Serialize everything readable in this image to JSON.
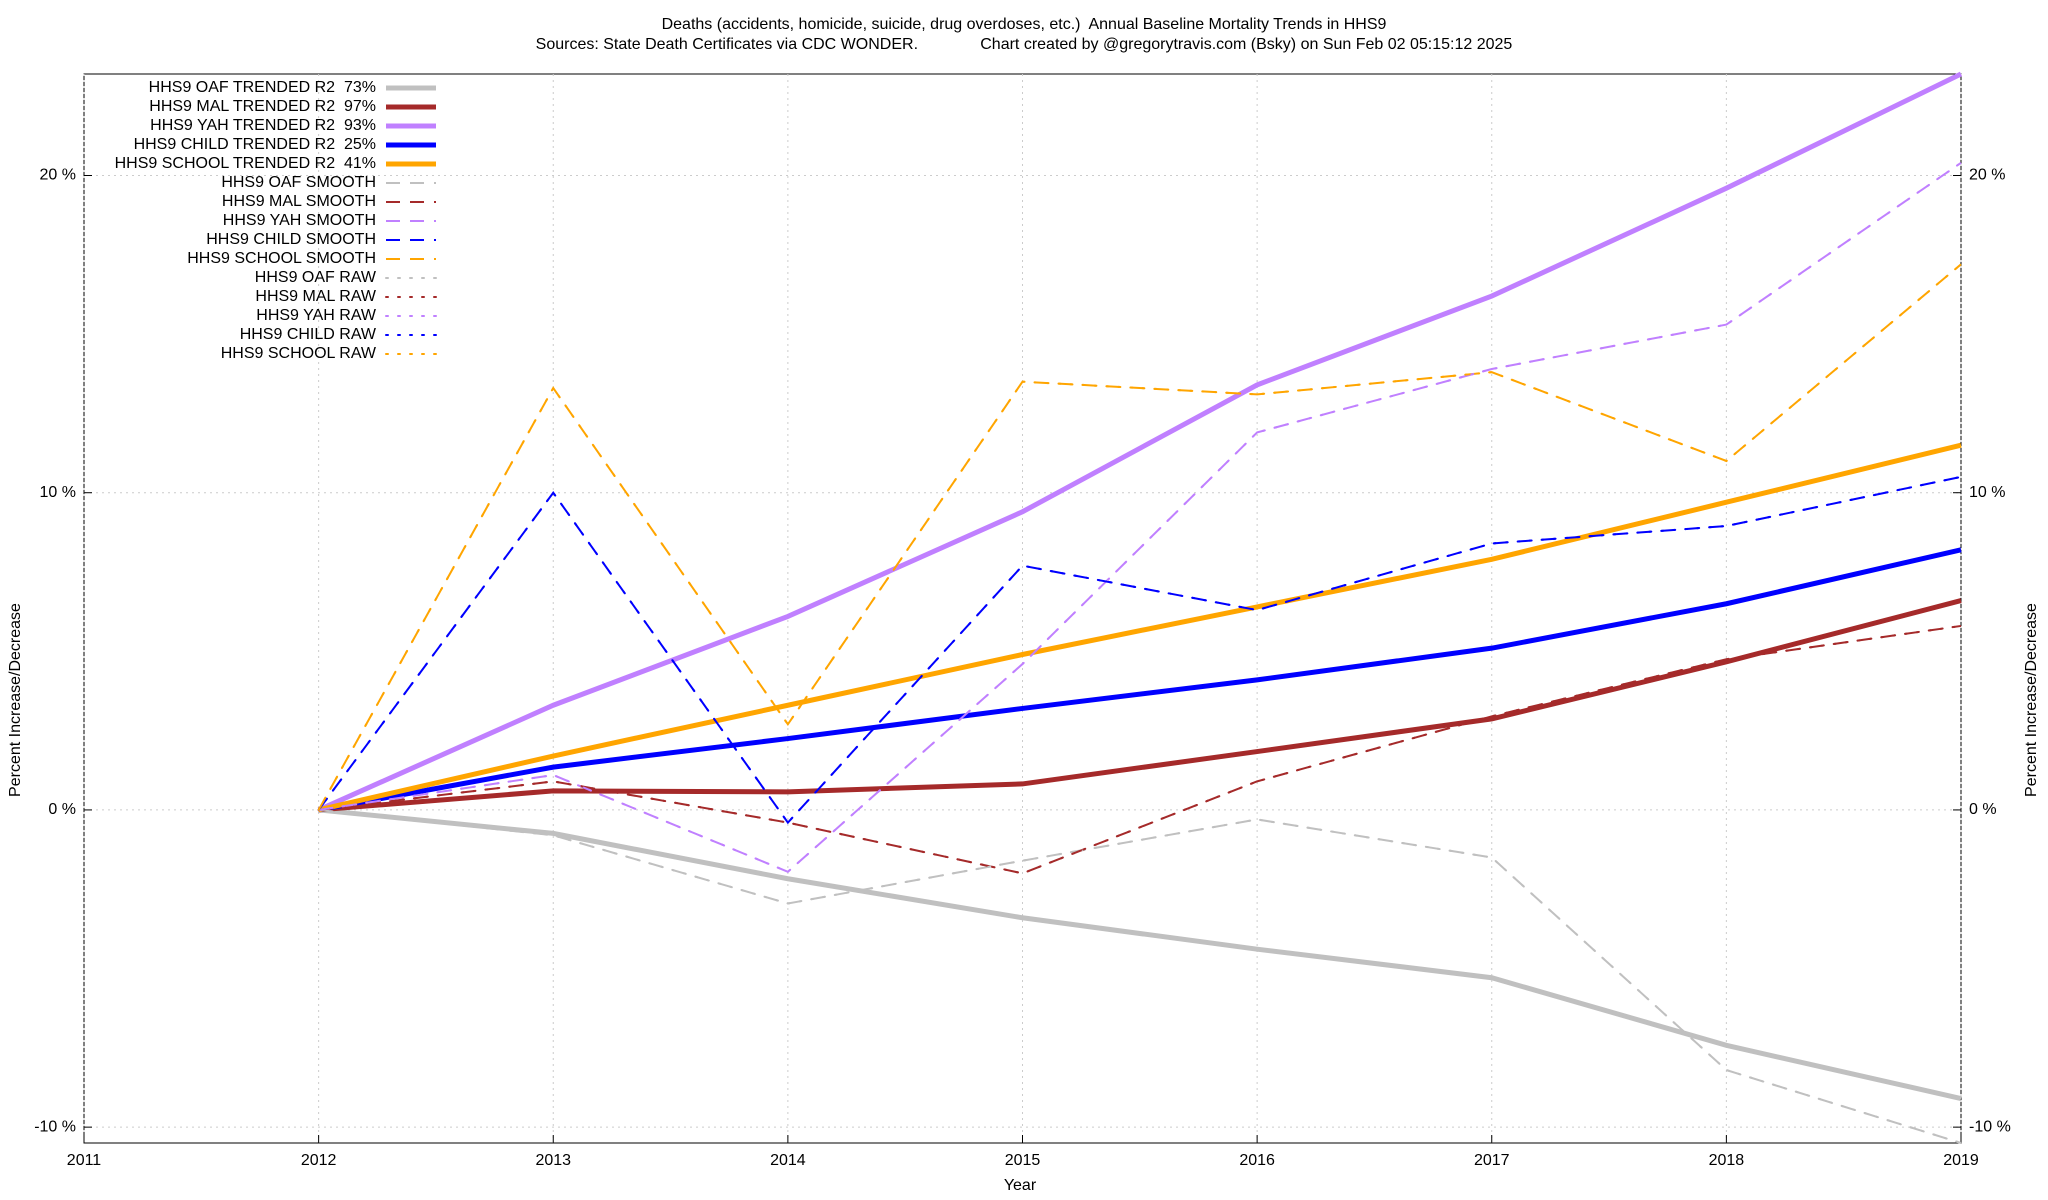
{
  "chart_data": {
    "type": "line",
    "title": "Deaths (accidents, homicide, suicide, drug overdoses, etc.)  Annual Baseline Mortality Trends in HHS9",
    "subtitle": "Sources: State Death Certificates via CDC WONDER.              Chart created by @gregorytravis.com (Bsky) on Sun Feb 02 05:15:12 2025",
    "x_label": "Year",
    "y_label": "Percent Increase/Decrease",
    "x": [
      2012,
      2013,
      2014,
      2015,
      2016,
      2017,
      2018,
      2019
    ],
    "xlim": [
      2011,
      2019
    ],
    "xticks": [
      2011,
      2012,
      2013,
      2014,
      2015,
      2016,
      2017,
      2018,
      2019
    ],
    "ylim": [
      -10.5,
      23.2
    ],
    "yticks": [
      {
        "value": -10,
        "label": "-10 %"
      },
      {
        "value": 0,
        "label": "0 %"
      },
      {
        "value": 10,
        "label": "10 %"
      },
      {
        "value": 20,
        "label": "20 %"
      }
    ],
    "grid": true,
    "legend": "top-left",
    "series": [
      {
        "name": "HHS9 OAF TRENDED R2  73%",
        "color": "#c0c0c0",
        "style": "solid",
        "values": [
          0,
          -0.74,
          -2.17,
          -3.4,
          -4.39,
          -5.29,
          -7.42,
          -9.1
        ]
      },
      {
        "name": "HHS9 MAL TRENDED R2  97%",
        "color": "#a52a2a",
        "style": "solid",
        "values": [
          0,
          0.6,
          0.57,
          0.82,
          1.84,
          2.87,
          4.67,
          6.6
        ]
      },
      {
        "name": "HHS9 YAH TRENDED R2  93%",
        "color": "#c080ff",
        "style": "solid",
        "values": [
          0,
          3.3,
          6.1,
          9.4,
          13.4,
          16.2,
          19.6,
          23.2
        ]
      },
      {
        "name": "HHS9 CHILD TRENDED R2  25%",
        "color": "#0000ff",
        "style": "solid",
        "values": [
          0,
          1.35,
          2.25,
          3.2,
          4.1,
          5.1,
          6.5,
          8.2
        ]
      },
      {
        "name": "HHS9 SCHOOL TRENDED R2  41%",
        "color": "#ffa500",
        "style": "solid",
        "values": [
          0,
          1.7,
          3.3,
          4.9,
          6.4,
          7.9,
          9.7,
          11.5
        ]
      },
      {
        "name": "HHS9 OAF SMOOTH",
        "color": "#c0c0c0",
        "style": "dashed",
        "values": [
          0,
          -0.8,
          -2.95,
          -1.6,
          -0.3,
          -1.5,
          -8.2,
          -10.5
        ]
      },
      {
        "name": "HHS9 MAL SMOOTH",
        "color": "#a52a2a",
        "style": "dashed",
        "values": [
          0,
          0.9,
          -0.4,
          -2.0,
          0.9,
          2.95,
          4.75,
          5.8
        ]
      },
      {
        "name": "HHS9 YAH SMOOTH",
        "color": "#c080ff",
        "style": "dashed",
        "values": [
          0,
          1.1,
          -1.95,
          4.6,
          11.9,
          13.9,
          15.3,
          20.4
        ]
      },
      {
        "name": "HHS9 CHILD SMOOTH",
        "color": "#0000ff",
        "style": "dashed",
        "values": [
          0,
          10,
          -0.4,
          7.7,
          6.3,
          8.4,
          8.95,
          10.5
        ]
      },
      {
        "name": "HHS9 SCHOOL SMOOTH",
        "color": "#ffa500",
        "style": "dashed",
        "values": [
          0,
          13.3,
          2.7,
          13.5,
          13.1,
          13.8,
          11.0,
          17.2
        ]
      },
      {
        "name": "HHS9 OAF RAW",
        "color": "#c0c0c0",
        "style": "dotted",
        "values": [
          0,
          -0.8,
          -2.95,
          -1.6,
          -0.3,
          -1.5,
          -8.2,
          -10.5
        ]
      },
      {
        "name": "HHS9 MAL RAW",
        "color": "#a52a2a",
        "style": "dotted",
        "values": [
          0,
          0.9,
          -0.4,
          -2.0,
          0.9,
          2.95,
          4.75,
          5.8
        ]
      },
      {
        "name": "HHS9 YAH RAW",
        "color": "#c080ff",
        "style": "dotted",
        "values": [
          0,
          1.1,
          -1.95,
          4.6,
          11.9,
          13.9,
          15.3,
          20.4
        ]
      },
      {
        "name": "HHS9 CHILD RAW",
        "color": "#0000ff",
        "style": "dotted",
        "values": [
          0,
          10,
          -0.4,
          7.7,
          6.3,
          8.4,
          8.95,
          10.5
        ]
      },
      {
        "name": "HHS9 SCHOOL RAW",
        "color": "#ffa500",
        "style": "dotted",
        "values": [
          0,
          13.3,
          2.7,
          13.5,
          13.1,
          13.8,
          11.0,
          17.2
        ]
      }
    ]
  }
}
